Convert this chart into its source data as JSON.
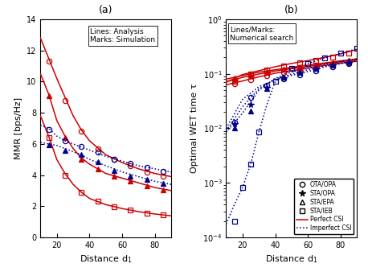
{
  "title_a": "(a)",
  "title_b": "(b)",
  "xlabel": "Distance d$_1$",
  "ylabel_a": "MMR [bps/Hz]",
  "ylabel_b": "Optimal WET time τ",
  "annotation_a": "Lines: Analysis\nMarks: Simulation",
  "annotation_b": "Lines/Marks:\nNumerical search",
  "x_ticks": [
    20,
    40,
    60,
    80
  ],
  "x_range": [
    10,
    90
  ],
  "ylim_a": [
    0,
    14
  ],
  "yticks_a": [
    0,
    2,
    4,
    6,
    8,
    10,
    12,
    14
  ],
  "red_solid_top": {
    "x": [
      10,
      15,
      20,
      25,
      30,
      35,
      40,
      50,
      60,
      70,
      80,
      90
    ],
    "y": [
      12.8,
      11.5,
      10.2,
      9.0,
      7.8,
      6.9,
      6.2,
      5.3,
      4.8,
      4.4,
      4.1,
      3.9
    ]
  },
  "red_solid_mid": {
    "x": [
      10,
      15,
      20,
      25,
      30,
      35,
      40,
      50,
      60,
      70,
      80,
      90
    ],
    "y": [
      10.5,
      9.2,
      7.5,
      6.5,
      5.7,
      5.1,
      4.7,
      4.1,
      3.8,
      3.5,
      3.2,
      3.0
    ]
  },
  "red_solid_bot": {
    "x": [
      10,
      15,
      20,
      25,
      30,
      35,
      40,
      50,
      60,
      70,
      80,
      90
    ],
    "y": [
      7.8,
      6.5,
      5.0,
      4.1,
      3.4,
      2.9,
      2.5,
      2.1,
      1.85,
      1.65,
      1.5,
      1.38
    ]
  },
  "blue_dot_top": {
    "x": [
      10,
      15,
      20,
      25,
      30,
      35,
      40,
      50,
      60,
      70,
      80,
      90
    ],
    "y": [
      7.2,
      7.0,
      6.5,
      6.2,
      6.0,
      5.8,
      5.6,
      5.2,
      4.9,
      4.6,
      4.4,
      4.2
    ]
  },
  "blue_dot_bot": {
    "x": [
      10,
      15,
      20,
      25,
      30,
      35,
      40,
      50,
      60,
      70,
      80,
      90
    ],
    "y": [
      6.1,
      6.0,
      5.9,
      5.7,
      5.5,
      5.3,
      5.0,
      4.6,
      4.2,
      3.9,
      3.6,
      3.4
    ]
  },
  "marks_a_red_circle": {
    "x": [
      15,
      25,
      35,
      45,
      55,
      65,
      75,
      85
    ],
    "y": [
      11.3,
      8.8,
      6.8,
      5.7,
      5.0,
      4.6,
      4.2,
      3.95
    ]
  },
  "marks_a_red_triangle": {
    "x": [
      15,
      25,
      35,
      45,
      55,
      65,
      75,
      85
    ],
    "y": [
      9.1,
      6.4,
      5.0,
      4.4,
      3.95,
      3.6,
      3.3,
      3.05
    ]
  },
  "marks_a_red_square": {
    "x": [
      15,
      25,
      35,
      45,
      55,
      65,
      75,
      85
    ],
    "y": [
      6.4,
      4.0,
      2.9,
      2.3,
      1.95,
      1.75,
      1.55,
      1.42
    ]
  },
  "marks_a_blue_circle": {
    "x": [
      15,
      25,
      35,
      45,
      55,
      65,
      75,
      85
    ],
    "y": [
      6.9,
      6.2,
      5.85,
      5.5,
      5.0,
      4.75,
      4.5,
      4.25
    ]
  },
  "marks_a_blue_triangle": {
    "x": [
      15,
      25,
      35,
      45,
      55,
      65,
      75,
      85
    ],
    "y": [
      5.95,
      5.6,
      5.3,
      4.85,
      4.3,
      3.95,
      3.7,
      3.45
    ]
  },
  "b_red_OTA": {
    "x": [
      10,
      20,
      30,
      40,
      50,
      60,
      70,
      80,
      90
    ],
    "y": [
      0.063,
      0.074,
      0.088,
      0.103,
      0.114,
      0.127,
      0.142,
      0.157,
      0.17
    ]
  },
  "b_red_STA": {
    "x": [
      10,
      20,
      30,
      40,
      50,
      60,
      70,
      80,
      90
    ],
    "y": [
      0.072,
      0.086,
      0.099,
      0.113,
      0.124,
      0.137,
      0.152,
      0.167,
      0.182
    ]
  },
  "b_red_EPA": {
    "x": [
      10,
      20,
      30,
      40,
      50,
      60,
      70,
      80,
      90
    ],
    "y": [
      0.08,
      0.093,
      0.107,
      0.119,
      0.131,
      0.144,
      0.158,
      0.173,
      0.188
    ]
  },
  "b_red_IEB": {
    "x": [
      10,
      20,
      30,
      40,
      50,
      60,
      70,
      80,
      90
    ],
    "y": [
      0.07,
      0.097,
      0.114,
      0.135,
      0.155,
      0.175,
      0.2,
      0.232,
      0.28
    ]
  },
  "b_blue_OTA": {
    "x": [
      10,
      20,
      30,
      40,
      50,
      60,
      70,
      80,
      90
    ],
    "y": [
      0.01,
      0.034,
      0.058,
      0.077,
      0.094,
      0.11,
      0.133,
      0.153,
      0.172
    ]
  },
  "b_blue_STA": {
    "x": [
      10,
      20,
      30,
      40,
      50,
      60,
      70,
      80,
      90
    ],
    "y": [
      0.009,
      0.025,
      0.053,
      0.08,
      0.099,
      0.118,
      0.139,
      0.159,
      0.179
    ]
  },
  "b_blue_EPA": {
    "x": [
      10,
      20,
      30,
      40,
      50,
      60,
      70,
      80,
      90
    ],
    "y": [
      0.0085,
      0.019,
      0.05,
      0.083,
      0.108,
      0.128,
      0.149,
      0.169,
      0.188
    ]
  },
  "b_blue_IEB": {
    "x": [
      10,
      15,
      20,
      25,
      30,
      35,
      40,
      50,
      60,
      70,
      80,
      90
    ],
    "y": [
      0.000175,
      0.0004,
      0.00082,
      0.0022,
      0.0085,
      0.028,
      0.072,
      0.125,
      0.155,
      0.195,
      0.238,
      0.288
    ]
  },
  "marks_b_red_circle": {
    "x": [
      15,
      25,
      35,
      45,
      55,
      65,
      75,
      85
    ],
    "y": [
      0.066,
      0.078,
      0.094,
      0.107,
      0.117,
      0.131,
      0.146,
      0.161
    ]
  },
  "marks_b_red_star": {
    "x": [
      15,
      25,
      35,
      45,
      55,
      65,
      75,
      85
    ],
    "y": [
      0.076,
      0.09,
      0.102,
      0.116,
      0.127,
      0.14,
      0.155,
      0.17
    ]
  },
  "marks_b_red_triangle": {
    "x": [
      15,
      25,
      35,
      45,
      55,
      65,
      75,
      85
    ],
    "y": [
      0.083,
      0.097,
      0.11,
      0.122,
      0.134,
      0.146,
      0.161,
      0.176
    ]
  },
  "marks_b_red_square": {
    "x": [
      15,
      25,
      35,
      45,
      55,
      65,
      75,
      85
    ],
    "y": [
      0.074,
      0.1,
      0.117,
      0.137,
      0.157,
      0.177,
      0.203,
      0.237
    ]
  },
  "marks_b_blue_circle": {
    "x": [
      15,
      25,
      35,
      45,
      55,
      65,
      75,
      85
    ],
    "y": [
      0.013,
      0.037,
      0.061,
      0.08,
      0.097,
      0.112,
      0.136,
      0.156
    ]
  },
  "marks_b_blue_star": {
    "x": [
      15,
      25,
      35,
      45,
      55,
      65,
      75,
      85
    ],
    "y": [
      0.012,
      0.027,
      0.056,
      0.083,
      0.102,
      0.121,
      0.142,
      0.162
    ]
  },
  "marks_b_blue_triangle": {
    "x": [
      15,
      25,
      35,
      45,
      55,
      65,
      75,
      85
    ],
    "y": [
      0.01,
      0.021,
      0.053,
      0.086,
      0.111,
      0.131,
      0.151,
      0.171
    ]
  },
  "marks_b_blue_square": {
    "x": [
      15,
      20,
      25,
      30,
      40,
      50,
      60,
      70,
      80,
      90
    ],
    "y": [
      0.000195,
      0.00083,
      0.0022,
      0.0087,
      0.073,
      0.126,
      0.156,
      0.196,
      0.24,
      0.291
    ]
  },
  "color_red": "#cc0000",
  "color_blue": "#00008B",
  "legend_loc": "lower right"
}
